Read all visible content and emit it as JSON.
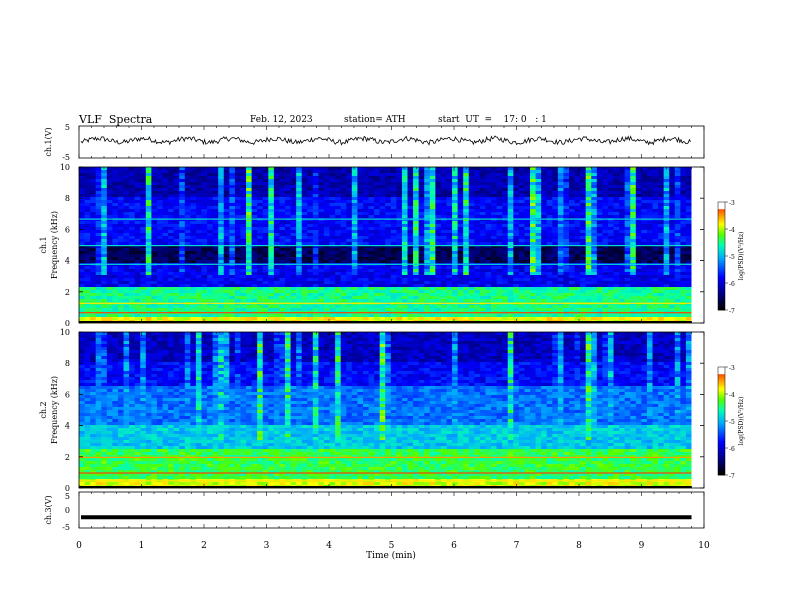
{
  "header": {
    "title": "VLF  Spectra",
    "date": "Feb. 12, 2023",
    "station": "station= ATH",
    "start": "start  UT  =    17: 0   : 1"
  },
  "chart_data": [
    {
      "type": "line",
      "id": "ch1",
      "ylabel": "ch.1(V)",
      "ylim": [
        -5,
        5
      ],
      "yticks": [
        "5",
        "-5"
      ],
      "description_level": 0.5
    },
    {
      "type": "heatmap",
      "id": "spec1",
      "ylabel": "ch.1 Frequency (kHz)",
      "ylim": [
        0,
        10
      ],
      "yticks": [
        "0",
        "2",
        "4",
        "6",
        "8",
        "10"
      ],
      "colorbar": {
        "label": "log(PSD)(V²/Hz)",
        "range": [
          -7,
          -3
        ],
        "ticks": [
          "-3",
          "-4",
          "-5",
          "-6",
          "-7"
        ]
      }
    },
    {
      "type": "heatmap",
      "id": "spec2",
      "ylabel": "ch.2 Frequency (kHz)",
      "ylim": [
        0,
        10
      ],
      "yticks": [
        "0",
        "2",
        "4",
        "6",
        "8",
        "10"
      ],
      "colorbar": {
        "label": "log(PSD)(V²/Hz)",
        "range": [
          -7,
          -3
        ],
        "ticks": [
          "-3",
          "-4",
          "-5",
          "-6",
          "-7"
        ]
      }
    },
    {
      "type": "line",
      "id": "ch3",
      "ylabel": "ch.3(V)",
      "ylim": [
        -5,
        5
      ],
      "yticks": [
        "5",
        "0",
        "-5"
      ],
      "level": -2
    }
  ],
  "xaxis": {
    "label": "Time  (min)",
    "xlim": [
      0,
      10
    ],
    "ticks": [
      "0",
      "1",
      "2",
      "3",
      "4",
      "5",
      "6",
      "7",
      "8",
      "9",
      "10"
    ],
    "data_end": 9.8
  },
  "colors": {
    "scale": [
      "#000000",
      "#00006e",
      "#0000ff",
      "#00b4ff",
      "#00ffb4",
      "#50ff00",
      "#ffff00",
      "#ff8000",
      "#ff0000",
      "#ffffff"
    ]
  }
}
